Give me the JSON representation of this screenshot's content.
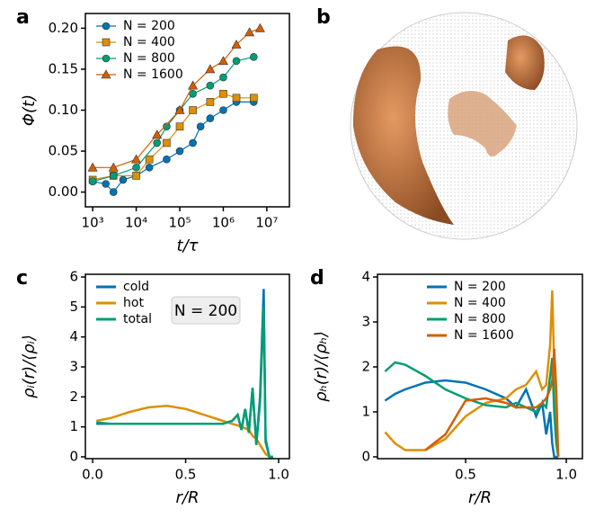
{
  "chart_data": [
    {
      "type": "line",
      "panel": "a",
      "xlabel": "t/τ",
      "ylabel": "Φ(t)",
      "xscale": "log",
      "legend": "upper left",
      "markers": true,
      "xlim": [
        680,
        33000000
      ],
      "ylim": [
        -0.018,
        0.218
      ],
      "xticks": [
        {
          "value": 1000,
          "label": "10³"
        },
        {
          "value": 10000,
          "label": "10⁴"
        },
        {
          "value": 100000,
          "label": "10⁵"
        },
        {
          "value": 1000000,
          "label": "10⁶"
        },
        {
          "value": 10000000,
          "label": "10⁷"
        }
      ],
      "yticks": [
        {
          "value": 0,
          "label": "0.00"
        },
        0.05,
        {
          "value": 0.1,
          "label": "0.10"
        },
        0.15,
        {
          "value": 0.2,
          "label": "0.20"
        }
      ],
      "series": [
        {
          "name": "N = 200",
          "color": "#0173b2",
          "marker": "circle",
          "x": [
            1000,
            2000,
            3000,
            5000,
            10000,
            20000,
            50000,
            100000,
            200000,
            300000,
            500000,
            1000000,
            2000000,
            5000000
          ],
          "values": [
            0.013,
            0.01,
            0.0,
            0.015,
            0.02,
            0.03,
            0.04,
            0.05,
            0.06,
            0.08,
            0.09,
            0.1,
            0.11,
            0.11
          ]
        },
        {
          "name": "N = 400",
          "color": "#de8f05",
          "marker": "square",
          "x": [
            1000,
            3000,
            10000,
            20000,
            50000,
            100000,
            200000,
            500000,
            1000000,
            2000000,
            5000000
          ],
          "values": [
            0.015,
            0.02,
            0.02,
            0.04,
            0.06,
            0.08,
            0.1,
            0.11,
            0.12,
            0.115,
            0.115
          ]
        },
        {
          "name": "N = 800",
          "color": "#029e73",
          "marker": "circle",
          "x": [
            1000,
            3000,
            10000,
            30000,
            50000,
            100000,
            200000,
            500000,
            1000000,
            2000000,
            5000000
          ],
          "values": [
            0.013,
            0.02,
            0.03,
            0.06,
            0.08,
            0.1,
            0.12,
            0.13,
            0.14,
            0.16,
            0.165
          ]
        },
        {
          "name": "N = 1600",
          "color": "#d55e00",
          "marker": "triangle",
          "x": [
            1000,
            3000,
            10000,
            30000,
            100000,
            200000,
            500000,
            1000000,
            2000000,
            4000000,
            7000000
          ],
          "values": [
            0.03,
            0.03,
            0.04,
            0.07,
            0.1,
            0.13,
            0.15,
            0.16,
            0.18,
            0.195,
            0.2
          ]
        }
      ]
    },
    {
      "type": "image",
      "panel": "b"
    },
    {
      "type": "line",
      "panel": "c",
      "xlabel": "r/R",
      "ylabel": "ρᵢ(r)/⟨ρᵢ⟩",
      "legend": "upper left",
      "annotation": "N = 200",
      "xlim": [
        -0.039,
        1.058
      ],
      "ylim": [
        -0.06,
        6.09
      ],
      "xticks": [
        {
          "value": 0,
          "label": "0.0"
        },
        0.5,
        {
          "value": 1,
          "label": "1.0"
        }
      ],
      "yticks": [
        0,
        1,
        2,
        3,
        4,
        5,
        6
      ],
      "x": [
        0.02,
        0.1,
        0.2,
        0.3,
        0.4,
        0.5,
        0.6,
        0.7,
        0.75,
        0.78,
        0.8,
        0.82,
        0.84,
        0.86,
        0.88,
        0.9,
        0.92,
        0.93,
        0.95,
        0.97
      ],
      "series": [
        {
          "name": "cold",
          "color": "#0173b2",
          "values": [
            1.1,
            1.1,
            1.1,
            1.1,
            1.1,
            1.1,
            1.1,
            1.1,
            1.2,
            1.4,
            0.9,
            1.6,
            0.8,
            2.3,
            0.4,
            2.0,
            5.6,
            0.5,
            0,
            0
          ]
        },
        {
          "name": "hot",
          "color": "#de8f05",
          "values": [
            1.2,
            1.3,
            1.5,
            1.65,
            1.7,
            1.6,
            1.4,
            1.2,
            1.1,
            1.05,
            1.0,
            0.95,
            0.9,
            0.7,
            0.6,
            0.4,
            0.2,
            0.1,
            0,
            0
          ]
        },
        {
          "name": "total",
          "color": "#029e73",
          "values": [
            1.15,
            1.1,
            1.1,
            1.1,
            1.1,
            1.1,
            1.1,
            1.1,
            1.2,
            1.4,
            0.9,
            1.6,
            0.8,
            2.3,
            0.4,
            1.8,
            5.0,
            0.6,
            0,
            0
          ]
        }
      ]
    },
    {
      "type": "line",
      "panel": "d",
      "xlabel": "r/R",
      "ylabel": "ρₕ(r)/⟨ρₕ⟩",
      "legend": "upper center",
      "xlim": [
        0.0625,
        1.08
      ],
      "ylim": [
        -0.04,
        4.06
      ],
      "xticks": [
        0.5,
        {
          "value": 1,
          "label": "1.0"
        }
      ],
      "yticks": [
        0,
        1,
        2,
        3,
        4
      ],
      "x": [
        0.1,
        0.15,
        0.2,
        0.3,
        0.4,
        0.5,
        0.6,
        0.7,
        0.75,
        0.8,
        0.85,
        0.88,
        0.9,
        0.92,
        0.93,
        0.94,
        0.95,
        0.96
      ],
      "series": [
        {
          "name": "N = 200",
          "color": "#0173b2",
          "values": [
            1.25,
            1.4,
            1.5,
            1.65,
            1.7,
            1.65,
            1.5,
            1.3,
            1.1,
            1.5,
            0.9,
            1.2,
            0.5,
            1.0,
            0.3,
            0,
            0,
            0
          ]
        },
        {
          "name": "N = 400",
          "color": "#de8f05",
          "values": [
            0.55,
            0.3,
            0.15,
            0.15,
            0.4,
            0.9,
            1.2,
            1.3,
            1.5,
            1.6,
            1.9,
            1.5,
            1.6,
            2.5,
            3.7,
            2.0,
            0.5,
            0
          ]
        },
        {
          "name": "N = 800",
          "color": "#029e73",
          "values": [
            1.9,
            2.1,
            2.05,
            1.8,
            1.5,
            1.3,
            1.15,
            1.1,
            1.2,
            1.1,
            1.0,
            1.2,
            1.1,
            1.8,
            2.2,
            1.0,
            0.3,
            0
          ]
        },
        {
          "name": "N = 1600",
          "color": "#d55e00",
          "values": [
            null,
            null,
            null,
            0.15,
            0.5,
            1.25,
            1.3,
            1.2,
            1.1,
            1.1,
            1.1,
            1.2,
            1.3,
            1.5,
            1.7,
            2.4,
            1.5,
            0
          ]
        }
      ]
    }
  ]
}
